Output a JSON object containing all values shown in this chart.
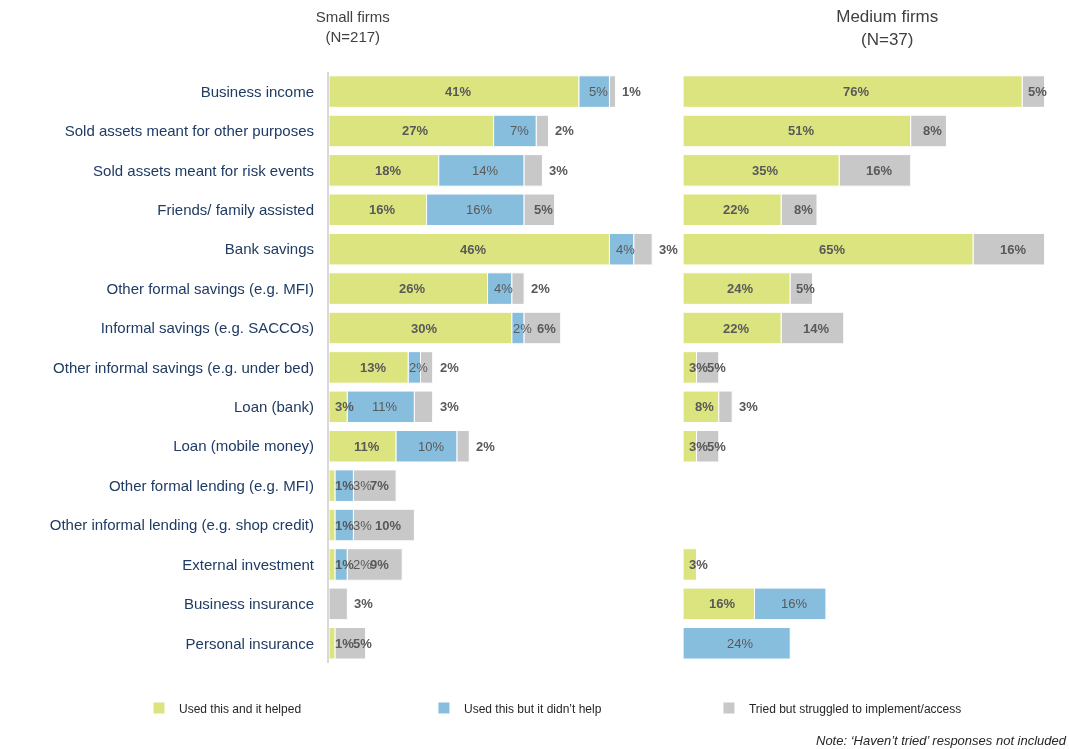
{
  "chart_data": [
    {
      "type": "bar",
      "orientation": "horizontal",
      "stacked": true,
      "title": "Small firms\n(N=217)",
      "tick_labels": "y",
      "legend": "bottom",
      "categories": [
        "Business income",
        "Sold assets meant for other purposes",
        "Sold assets meant for risk events",
        "Friends/ family assisted",
        "Bank savings",
        "Other formal savings (e.g. MFI)",
        "Informal savings (e.g. SACCOs)",
        "Other informal savings (e.g. under bed)",
        "Loan (bank)",
        "Loan (mobile money)",
        "Other formal lending (e.g. MFI)",
        "Other informal lending (e.g. shop credit)",
        "External investment",
        "Business insurance",
        "Personal insurance"
      ],
      "series": [
        {
          "name": "Used this and it helped",
          "color": "#dce47f",
          "values": [
            41,
            27,
            18,
            16,
            46,
            26,
            30,
            13,
            3,
            11,
            1,
            1,
            1,
            null,
            1
          ],
          "value_labels": [
            "41%",
            "27%",
            "18%",
            "16%",
            "46%",
            "26%",
            "30%",
            "13%",
            "3%",
            "11%",
            "1%",
            "1%",
            "1%",
            null,
            "1%"
          ]
        },
        {
          "name": "Used this but it didn’t help",
          "color": "#87bede",
          "values": [
            5,
            7,
            14,
            16,
            4,
            4,
            2,
            2,
            11,
            10,
            3,
            3,
            2,
            null,
            null
          ],
          "value_labels": [
            "5%",
            "7%",
            "14%",
            "16%",
            "4%",
            "4%",
            "2%",
            "2%",
            "11%",
            "10%",
            "3%",
            "3%",
            "2%",
            null,
            null
          ]
        },
        {
          "name": "Tried but struggled to implement/access",
          "color": "#c8c8c8",
          "values": [
            1,
            2,
            3,
            5,
            3,
            2,
            6,
            2,
            3,
            2,
            7,
            10,
            9,
            3,
            5
          ],
          "value_labels": [
            "1%",
            "2%",
            "3%",
            "5%",
            "3%",
            "2%",
            "6%",
            "2%",
            "3%",
            "2%",
            "7%",
            "10%",
            "9%",
            "3%",
            "5%"
          ]
        }
      ]
    },
    {
      "type": "bar",
      "orientation": "horizontal",
      "stacked": true,
      "title": "Medium firms\n(N=37)",
      "tick_labels": false,
      "categories": [
        null,
        null,
        null,
        null,
        null,
        null,
        null,
        null,
        null,
        null,
        null,
        null,
        null,
        null,
        null
      ],
      "annotations": [
        "Note: ‘Haven’t tried’ responses not included"
      ],
      "series": [
        {
          "color": "#dce47f",
          "values": [
            76,
            51,
            35,
            22,
            65,
            24,
            22,
            3,
            8,
            3,
            null,
            null,
            3,
            16,
            null
          ],
          "value_labels": [
            "76%",
            "51%",
            "35%",
            "22%",
            "65%",
            "24%",
            "22%",
            "3%",
            "8%",
            "3%",
            null,
            null,
            "3%",
            "16%",
            null
          ]
        },
        {
          "color": "#87bede",
          "values": [
            null,
            null,
            null,
            null,
            null,
            null,
            null,
            null,
            null,
            null,
            null,
            null,
            null,
            16,
            24
          ],
          "value_labels": [
            null,
            null,
            null,
            null,
            null,
            null,
            null,
            null,
            null,
            null,
            null,
            null,
            null,
            "16%",
            "24%"
          ]
        },
        {
          "color": "#c8c8c8",
          "values": [
            5,
            8,
            16,
            8,
            16,
            5,
            14,
            5,
            3,
            5,
            null,
            null,
            null,
            null,
            null
          ],
          "value_labels": [
            "5%",
            "8%",
            "16%",
            "8%",
            "16%",
            "5%",
            "14%",
            "5%",
            "3%",
            "5%",
            null,
            null,
            null,
            null,
            null
          ]
        }
      ]
    }
  ]
}
